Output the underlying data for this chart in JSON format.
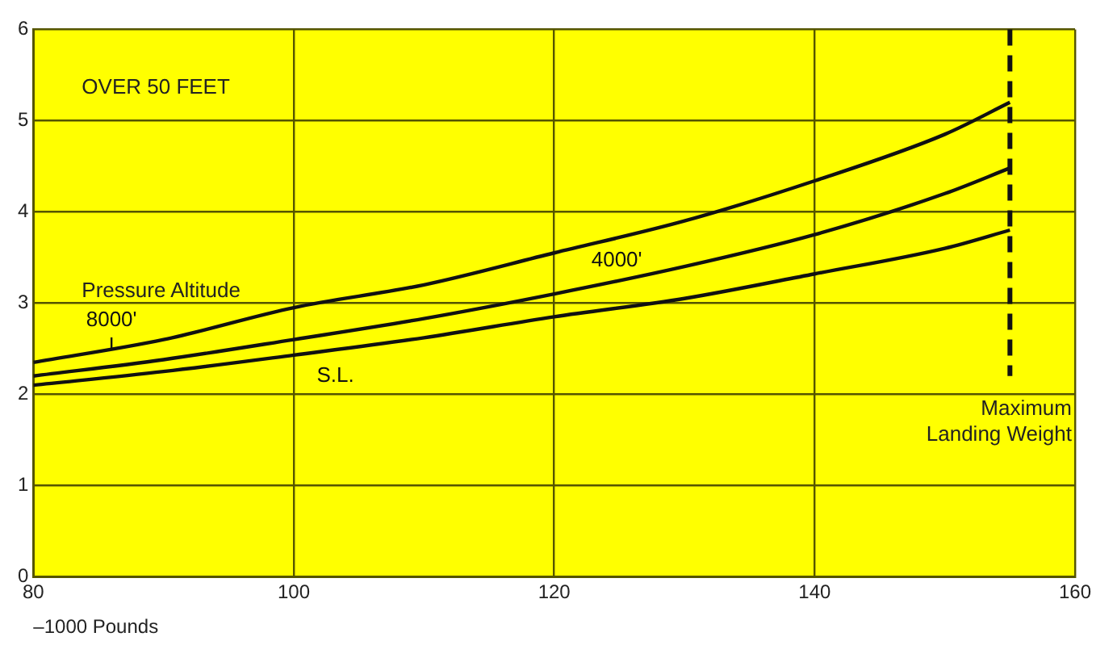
{
  "chart_data": {
    "type": "line",
    "xlabel": "–1000 Pounds",
    "legend_title": "Pressure Altitude",
    "x": [
      80,
      90,
      100,
      110,
      120,
      130,
      140,
      150,
      155
    ],
    "series": [
      {
        "name": "8000'",
        "color": "#111111",
        "values": [
          2.35,
          2.6,
          2.95,
          3.2,
          3.55,
          3.9,
          4.34,
          4.85,
          5.2
        ]
      },
      {
        "name": "4000'",
        "color": "#111111",
        "values": [
          2.2,
          2.38,
          2.6,
          2.83,
          3.1,
          3.4,
          3.75,
          4.2,
          4.48
        ]
      },
      {
        "name": "S.L.",
        "color": "#111111",
        "values": [
          2.1,
          2.25,
          2.43,
          2.62,
          2.85,
          3.05,
          3.32,
          3.6,
          3.8
        ]
      }
    ],
    "xlim": [
      80,
      160
    ],
    "xticks": [
      80,
      100,
      120,
      140,
      160
    ],
    "ylim": [
      0,
      6
    ],
    "yticks": [
      0,
      1,
      2,
      3,
      4,
      5,
      6
    ],
    "grid": true,
    "legend": false,
    "marker": "none",
    "line_style": "solid",
    "ref_lines": [
      {
        "axis": "x",
        "value": 155,
        "label": "Maximum Landing Weight",
        "line_style": "dashed",
        "color": "#111111"
      }
    ],
    "annotations": [
      "OVER 50 FEET"
    ]
  }
}
